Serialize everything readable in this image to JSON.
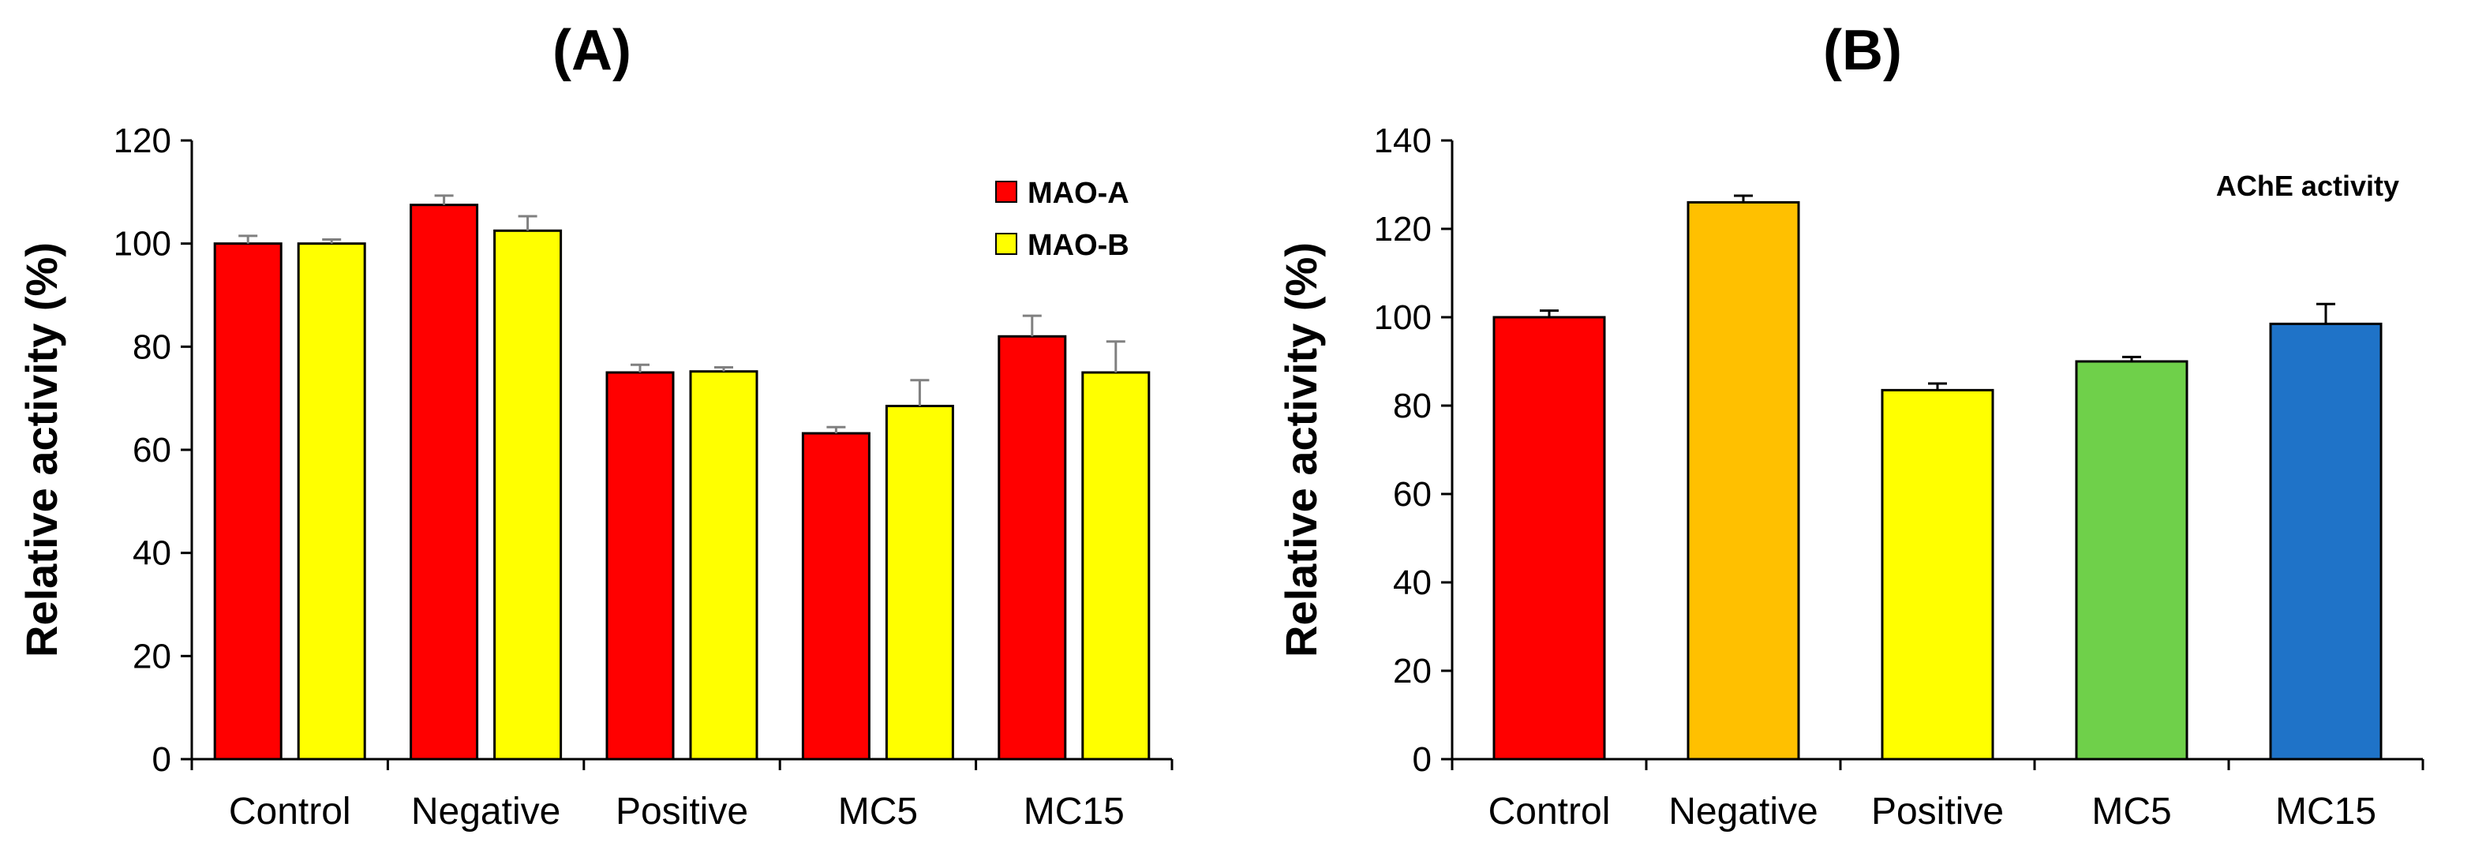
{
  "chart_data": [
    {
      "panel_label": "(A)",
      "type": "bar",
      "categories": [
        "Control",
        "Negative",
        "Positive",
        "MC5",
        "MC15"
      ],
      "series": [
        {
          "name": "MAO-A",
          "color": "#ff0000",
          "values": [
            100,
            107.5,
            75,
            63.2,
            82
          ],
          "errors": [
            1.5,
            1.8,
            1.5,
            1.2,
            4
          ]
        },
        {
          "name": "MAO-B",
          "color": "#ffff00",
          "values": [
            100,
            102.5,
            75.2,
            68.5,
            75
          ],
          "errors": [
            0.8,
            2.8,
            0.8,
            5,
            6
          ]
        }
      ],
      "title": "",
      "xlabel": "",
      "ylabel": "Relative  activity  (%)",
      "ylim": [
        0,
        120
      ],
      "yticks": [
        0,
        20,
        40,
        60,
        80,
        100,
        120
      ],
      "legend_position": "top-right",
      "grid": false
    },
    {
      "panel_label": "(B)",
      "type": "bar",
      "categories": [
        "Control",
        "Negative",
        "Positive",
        "MC5",
        "MC15"
      ],
      "series": [
        {
          "name": "AChE activity",
          "values": [
            100,
            126,
            83.5,
            90,
            98.5
          ],
          "errors": [
            1.5,
            1.5,
            1.5,
            1,
            4.5
          ]
        }
      ],
      "bar_colors": [
        "#ff0000",
        "#ffc000",
        "#ffff00",
        "#6fd04a",
        "#1f73c8"
      ],
      "annotation": "AChE activity",
      "title": "",
      "xlabel": "",
      "ylabel": "Relative  activity  (%)",
      "ylim": [
        0,
        140
      ],
      "yticks": [
        0,
        20,
        40,
        60,
        80,
        100,
        120,
        140
      ],
      "legend_position": "none",
      "grid": false
    }
  ]
}
